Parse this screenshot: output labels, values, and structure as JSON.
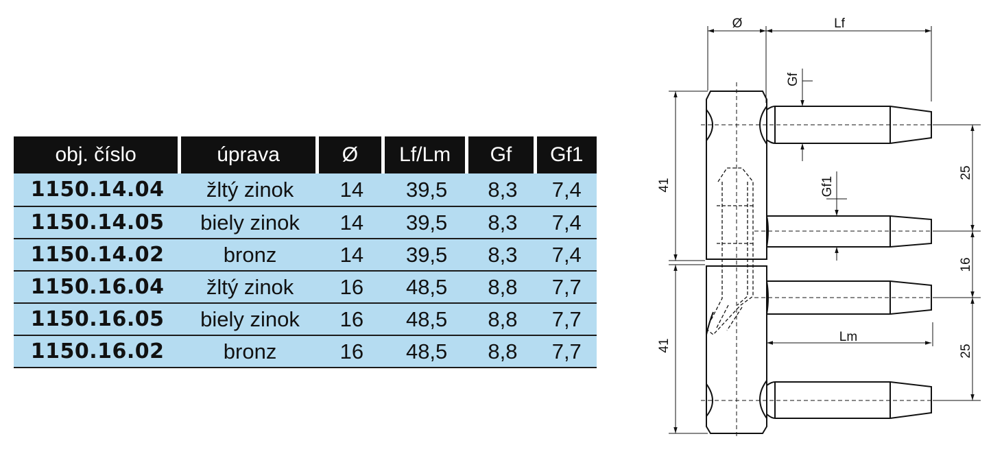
{
  "table": {
    "headers": [
      "obj. číslo",
      "úprava",
      "Ø",
      "Lf/Lm",
      "Gf",
      "Gf1"
    ],
    "rows": [
      [
        "1150.14.04",
        "žltý zinok",
        "14",
        "39,5",
        "8,3",
        "7,4"
      ],
      [
        "1150.14.05",
        "biely zinok",
        "14",
        "39,5",
        "8,3",
        "7,4"
      ],
      [
        "1150.14.02",
        "bronz",
        "14",
        "39,5",
        "8,3",
        "7,4"
      ],
      [
        "1150.16.04",
        "žltý zinok",
        "16",
        "48,5",
        "8,8",
        "7,7"
      ],
      [
        "1150.16.05",
        "biely zinok",
        "16",
        "48,5",
        "8,8",
        "7,7"
      ],
      [
        "1150.16.02",
        "bronz",
        "16",
        "48,5",
        "8,8",
        "7,7"
      ]
    ]
  },
  "drawing": {
    "dim_diameter": "Ø",
    "dim_lf": "Lf",
    "dim_gf": "Gf",
    "dim_gf1": "Gf1",
    "dim_lm": "Lm",
    "dim_height_upper": "41",
    "dim_height_lower": "41",
    "dim_spacing_top": "25",
    "dim_spacing_middle": "16",
    "dim_spacing_bottom": "25"
  },
  "colors": {
    "header_bg": "#101010",
    "row_bg": "#b5dcf1"
  }
}
